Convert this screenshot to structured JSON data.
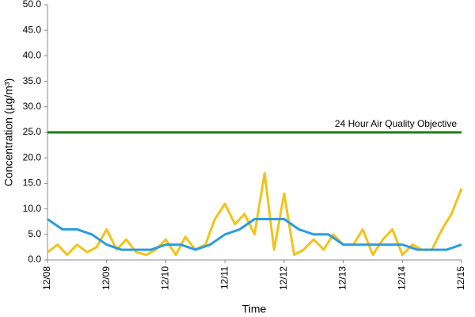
{
  "chart_data": {
    "type": "line",
    "x_label": "Time",
    "y_label": "Concentration (µg/m³)",
    "xlim": [
      0,
      7
    ],
    "xticks": [
      {
        "value": 0,
        "label": "12/08"
      },
      {
        "value": 1,
        "label": "12/09"
      },
      {
        "value": 2,
        "label": "12/10"
      },
      {
        "value": 3,
        "label": "12/11"
      },
      {
        "value": 4,
        "label": "12/12"
      },
      {
        "value": 5,
        "label": "12/13"
      },
      {
        "value": 6,
        "label": "12/14"
      },
      {
        "value": 7,
        "label": "12/15"
      }
    ],
    "ylim": [
      0,
      50
    ],
    "yticks": [
      {
        "value": 0,
        "label": "0.0"
      },
      {
        "value": 5,
        "label": "5.0"
      },
      {
        "value": 10,
        "label": "10.0"
      },
      {
        "value": 15,
        "label": "15.0"
      },
      {
        "value": 20,
        "label": "20.0"
      },
      {
        "value": 25,
        "label": "25.0"
      },
      {
        "value": 30,
        "label": "30.0"
      },
      {
        "value": 35,
        "label": "35.0"
      },
      {
        "value": 40,
        "label": "40.0"
      },
      {
        "value": 45,
        "label": "45.0"
      },
      {
        "value": 50,
        "label": "50.0"
      }
    ],
    "reference_line": {
      "value": 25,
      "label": "24 Hour Air Quality Objective",
      "color": "#1e7a1e"
    },
    "series": [
      {
        "color": "#f0c419",
        "x": [
          0,
          0.17,
          0.33,
          0.5,
          0.67,
          0.83,
          1.0,
          1.17,
          1.33,
          1.5,
          1.67,
          1.83,
          2.0,
          2.17,
          2.33,
          2.5,
          2.67,
          2.83,
          3.0,
          3.17,
          3.33,
          3.5,
          3.67,
          3.83,
          4.0,
          4.17,
          4.33,
          4.5,
          4.67,
          4.83,
          5.0,
          5.17,
          5.33,
          5.5,
          5.67,
          5.83,
          6.0,
          6.17,
          6.33,
          6.5,
          6.67,
          6.83,
          7.0
        ],
        "values": [
          1.5,
          3,
          1,
          3,
          1.5,
          2.5,
          6,
          2,
          4,
          1.5,
          1,
          2,
          4,
          1,
          4.5,
          2,
          3,
          8,
          11,
          7,
          9,
          5,
          17,
          2,
          13,
          1,
          2,
          4,
          2,
          5,
          3,
          3,
          6,
          1,
          4,
          6,
          1,
          3,
          2,
          2,
          6,
          9,
          14
        ]
      },
      {
        "color": "#2b9be0",
        "x": [
          0,
          0.25,
          0.5,
          0.75,
          1.0,
          1.25,
          1.5,
          1.75,
          2.0,
          2.25,
          2.5,
          2.75,
          3.0,
          3.25,
          3.5,
          3.75,
          4.0,
          4.25,
          4.5,
          4.75,
          5.0,
          5.25,
          5.5,
          5.75,
          6.0,
          6.25,
          6.5,
          6.75,
          7.0
        ],
        "values": [
          8,
          6,
          6,
          5,
          3,
          2,
          2,
          2,
          3,
          3,
          2,
          3,
          5,
          6,
          8,
          8,
          8,
          6,
          5,
          5,
          3,
          3,
          3,
          3,
          3,
          2,
          2,
          2,
          3
        ]
      }
    ]
  }
}
